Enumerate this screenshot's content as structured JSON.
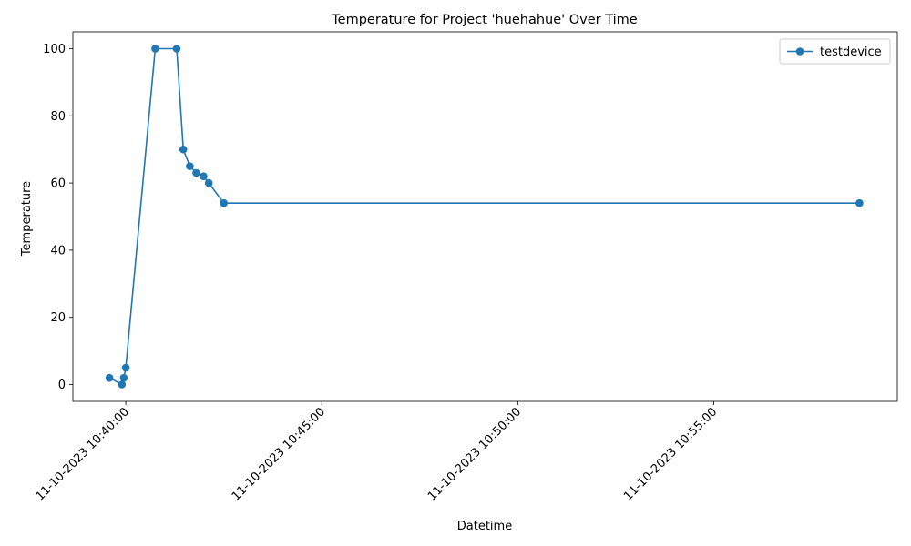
{
  "chart_data": {
    "type": "line",
    "title": "Temperature for Project 'huehahue' Over Time",
    "xlabel": "Datetime",
    "ylabel": "Temperature",
    "x_ticks": [
      "11-10-2023 10:40:00",
      "11-10-2023 10:45:00",
      "11-10-2023 10:50:00",
      "11-10-2023 10:55:00"
    ],
    "y_ticks": [
      "0",
      "20",
      "40",
      "60",
      "80",
      "100"
    ],
    "ylim": [
      -5,
      105
    ],
    "xlim": [
      "11-10-2023 10:38:39",
      "11-10-2023 10:59:41"
    ],
    "grid": false,
    "legend_position": "top-right",
    "series": [
      {
        "name": "testdevice",
        "color": "#1f77b4",
        "marker": "circle",
        "points": [
          {
            "x": "11-10-2023 10:39:35",
            "y": 2
          },
          {
            "x": "11-10-2023 10:39:54",
            "y": 0
          },
          {
            "x": "11-10-2023 10:39:57",
            "y": 2
          },
          {
            "x": "11-10-2023 10:40:00",
            "y": 5
          },
          {
            "x": "11-10-2023 10:40:45",
            "y": 100
          },
          {
            "x": "11-10-2023 10:41:18",
            "y": 100
          },
          {
            "x": "11-10-2023 10:41:28",
            "y": 70
          },
          {
            "x": "11-10-2023 10:41:38",
            "y": 65
          },
          {
            "x": "11-10-2023 10:41:48",
            "y": 63
          },
          {
            "x": "11-10-2023 10:41:59",
            "y": 62
          },
          {
            "x": "11-10-2023 10:42:07",
            "y": 60
          },
          {
            "x": "11-10-2023 10:42:30",
            "y": 54
          },
          {
            "x": "11-10-2023 10:58:43",
            "y": 54
          }
        ]
      }
    ]
  }
}
